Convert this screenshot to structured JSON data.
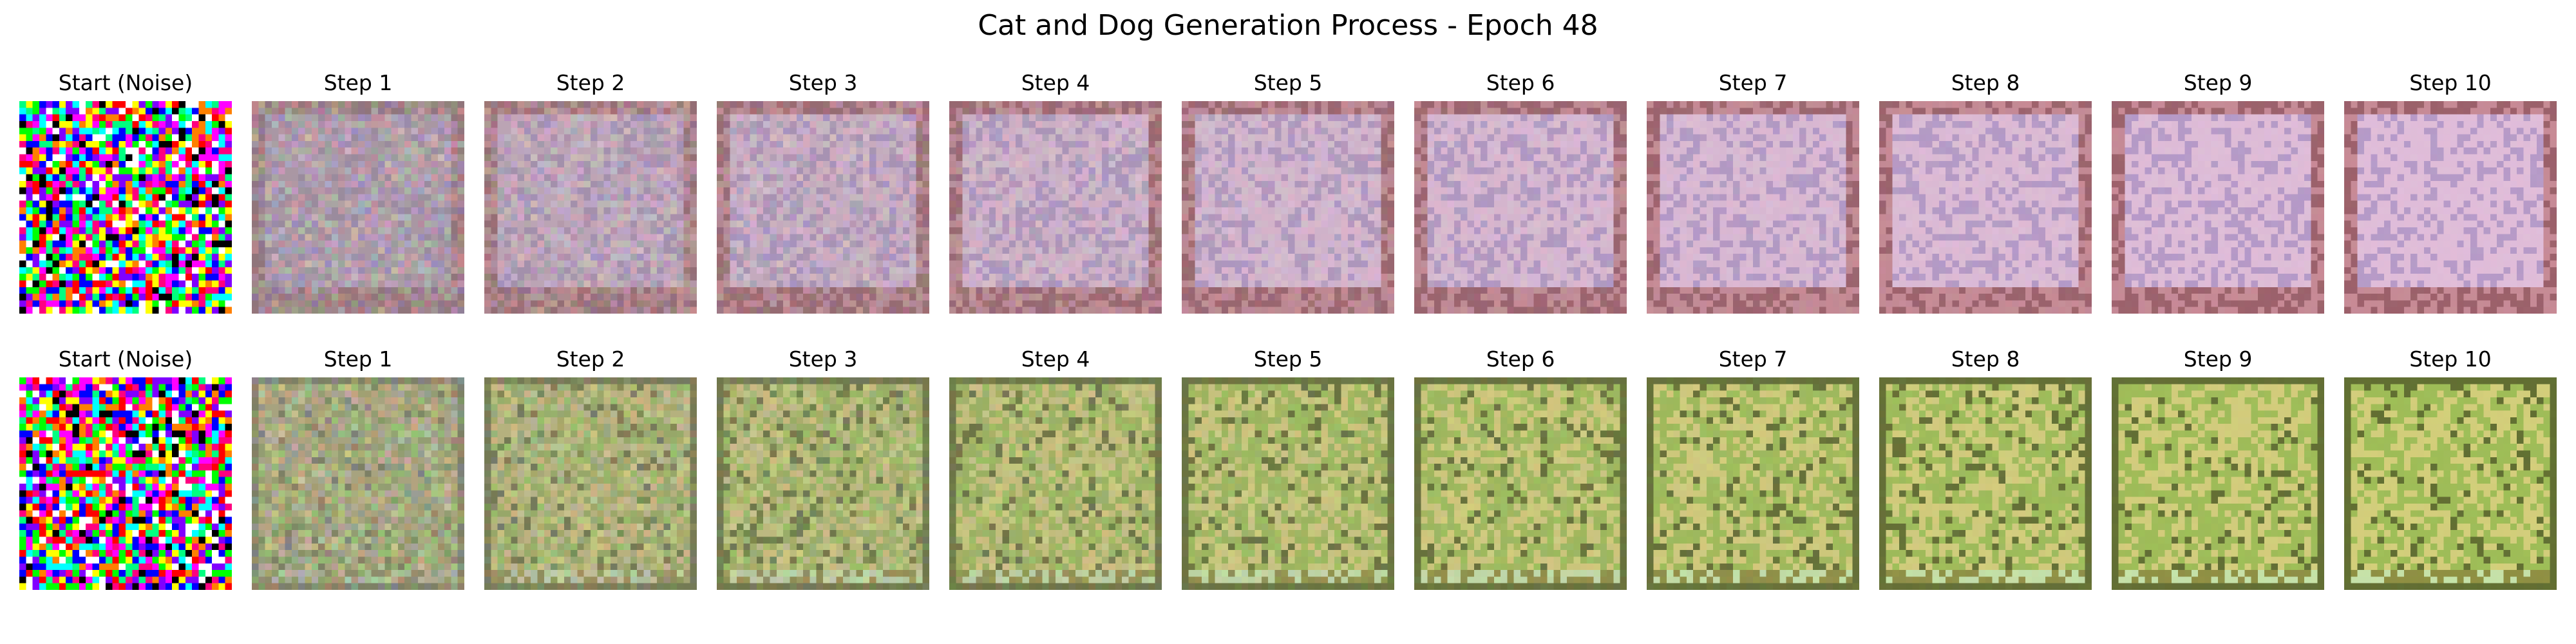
{
  "figure": {
    "title": "Cat and Dog Generation Process - Epoch 48"
  },
  "rows": [
    {
      "name": "cat-row",
      "panels": [
        {
          "title": "Start (Noise)",
          "kind": "noise",
          "seed": 11
        },
        {
          "title": "Step 1",
          "kind": "blend",
          "blend": 0.35,
          "seed": 101
        },
        {
          "title": "Step 2",
          "kind": "blend",
          "blend": 0.55,
          "seed": 102
        },
        {
          "title": "Step 3",
          "kind": "blend",
          "blend": 0.65,
          "seed": 103
        },
        {
          "title": "Step 4",
          "kind": "blend",
          "blend": 0.72,
          "seed": 104
        },
        {
          "title": "Step 5",
          "kind": "blend",
          "blend": 0.78,
          "seed": 105
        },
        {
          "title": "Step 6",
          "kind": "blend",
          "blend": 0.83,
          "seed": 106
        },
        {
          "title": "Step 7",
          "kind": "blend",
          "blend": 0.87,
          "seed": 107
        },
        {
          "title": "Step 8",
          "kind": "blend",
          "blend": 0.9,
          "seed": 108
        },
        {
          "title": "Step 9",
          "kind": "blend",
          "blend": 0.93,
          "seed": 109
        },
        {
          "title": "Step 10",
          "kind": "blend",
          "blend": 0.95,
          "seed": 110
        }
      ],
      "palette": {
        "inner": "#e3bfdc",
        "inner_alt": "#b79bcb",
        "border": "#c98a96",
        "border_dark": "#9c5e69",
        "muted": "#8a8284"
      }
    },
    {
      "name": "dog-row",
      "panels": [
        {
          "title": "Start (Noise)",
          "kind": "noise",
          "seed": 22
        },
        {
          "title": "Step 1",
          "kind": "blend",
          "blend": 0.35,
          "seed": 201
        },
        {
          "title": "Step 2",
          "kind": "blend",
          "blend": 0.55,
          "seed": 202
        },
        {
          "title": "Step 3",
          "kind": "blend",
          "blend": 0.65,
          "seed": 203
        },
        {
          "title": "Step 4",
          "kind": "blend",
          "blend": 0.72,
          "seed": 204
        },
        {
          "title": "Step 5",
          "kind": "blend",
          "blend": 0.78,
          "seed": 205
        },
        {
          "title": "Step 6",
          "kind": "blend",
          "blend": 0.83,
          "seed": 206
        },
        {
          "title": "Step 7",
          "kind": "blend",
          "blend": 0.87,
          "seed": 207
        },
        {
          "title": "Step 8",
          "kind": "blend",
          "blend": 0.9,
          "seed": 208
        },
        {
          "title": "Step 9",
          "kind": "blend",
          "blend": 0.93,
          "seed": 209
        },
        {
          "title": "Step 10",
          "kind": "blend",
          "blend": 0.95,
          "seed": 210
        }
      ],
      "palette": {
        "inner": "#9fbf55",
        "inner_alt": "#d6d07a",
        "border": "#8e8f3f",
        "border_dark": "#5f6c2e",
        "muted": "#8d8a82"
      }
    }
  ],
  "noise_colors": [
    "#ff00ff",
    "#00ff00",
    "#0000ff",
    "#ffff00",
    "#00ffff",
    "#ff0000",
    "#000000",
    "#ffffff",
    "#ff8000",
    "#8000ff",
    "#00ff80",
    "#ff0080"
  ]
}
